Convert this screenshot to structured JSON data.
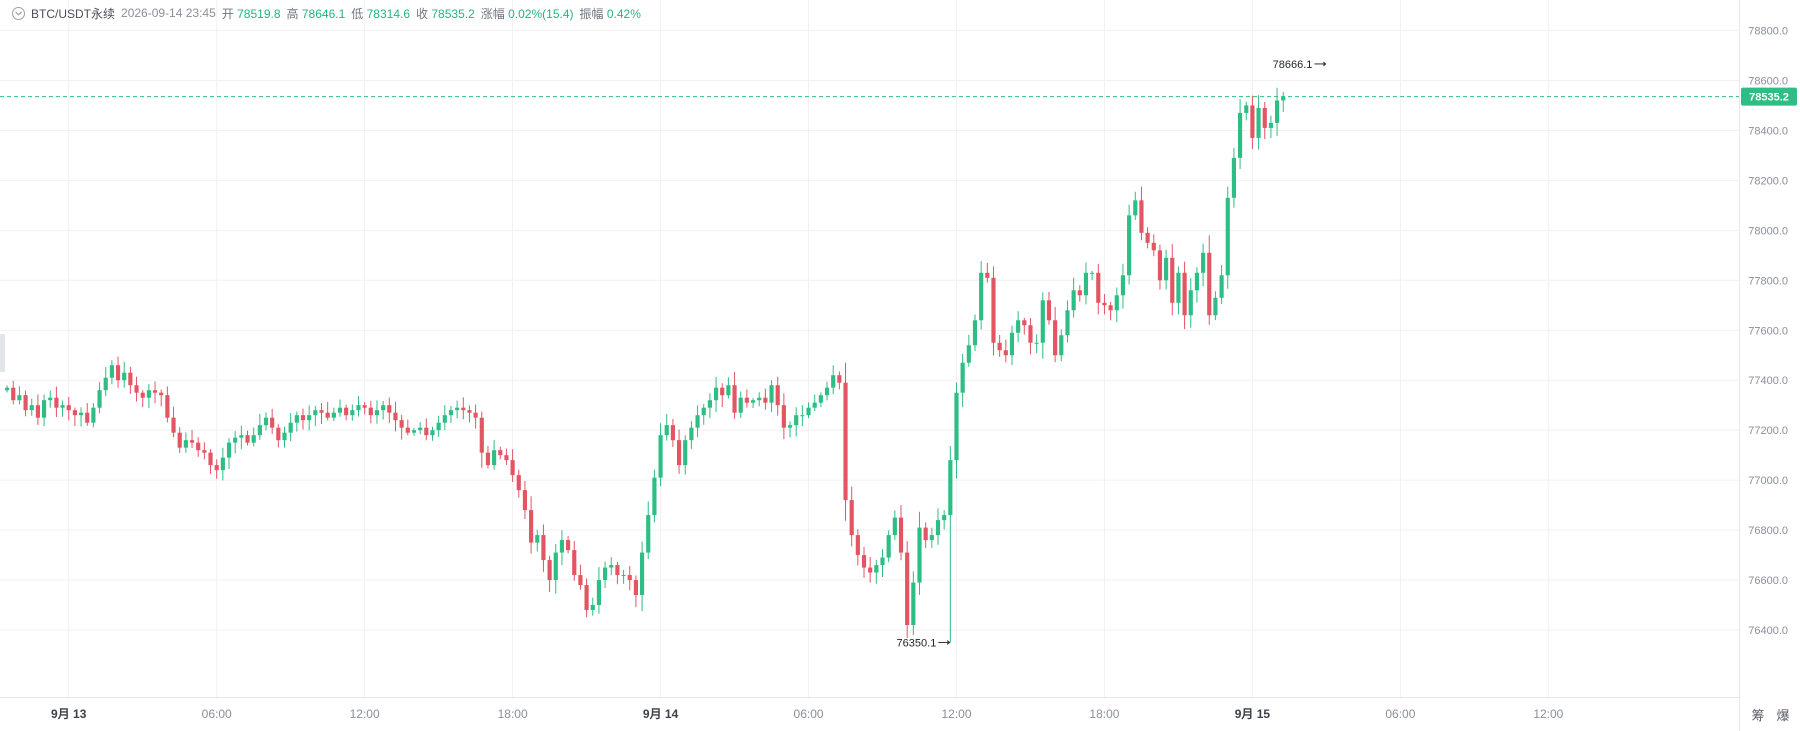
{
  "header": {
    "symbol": "BTC/USDT永续",
    "datetime": "2026-09-14 23:45",
    "open_label": "开",
    "open_value": "78519.8",
    "high_label": "高",
    "high_value": "78646.1",
    "low_label": "低",
    "low_value": "78314.6",
    "close_label": "收",
    "close_value": "78535.2",
    "change_label": "涨幅",
    "change_value": "0.02%(15.4)",
    "amplitude_label": "振幅",
    "amplitude_value": "0.42%"
  },
  "current_price_tag": "78535.2",
  "annotations": {
    "high_marker": "78666.1",
    "low_marker": "76350.1"
  },
  "corner_labels": [
    "筹",
    "爆"
  ],
  "colors": {
    "up": "#2ebd85",
    "down": "#e25563",
    "price_line": "#2ebd85",
    "grid": "#f0f1f3",
    "axis_text": "#8a8f99"
  },
  "chart_data": {
    "type": "candlestick",
    "interval_minutes": 15,
    "first_bar_time": "2026-09-12 21:30",
    "last_bar_time": "2026-09-14 23:45",
    "ylim": [
      76250,
      78850
    ],
    "y_ticks": [
      "78800.0",
      "78600.0",
      "78400.0",
      "78200.0",
      "78000.0",
      "77800.0",
      "77600.0",
      "77400.0",
      "77200.0",
      "77000.0",
      "76800.0",
      "76600.0",
      "76400.0"
    ],
    "x_ticks": [
      {
        "label": "9月 13",
        "bold": true
      },
      {
        "label": "06:00",
        "bold": false
      },
      {
        "label": "12:00",
        "bold": false
      },
      {
        "label": "18:00",
        "bold": false
      },
      {
        "label": "9月 14",
        "bold": true
      },
      {
        "label": "06:00",
        "bold": false
      },
      {
        "label": "12:00",
        "bold": false
      },
      {
        "label": "18:00",
        "bold": false
      },
      {
        "label": "9月 15",
        "bold": true
      },
      {
        "label": "06:00",
        "bold": false
      },
      {
        "label": "12:00",
        "bold": false
      }
    ],
    "closes": [
      77370,
      77320,
      77340,
      77280,
      77300,
      77250,
      77320,
      77330,
      77290,
      77300,
      77280,
      77260,
      77270,
      77230,
      77290,
      77360,
      77410,
      77460,
      77400,
      77430,
      77380,
      77350,
      77330,
      77360,
      77350,
      77340,
      77250,
      77190,
      77130,
      77160,
      77150,
      77120,
      77110,
      77060,
      77040,
      77090,
      77150,
      77170,
      77180,
      77150,
      77180,
      77220,
      77250,
      77210,
      77160,
      77190,
      77230,
      77260,
      77240,
      77260,
      77280,
      77270,
      77250,
      77270,
      77290,
      77260,
      77280,
      77300,
      77290,
      77260,
      77280,
      77300,
      77270,
      77240,
      77210,
      77190,
      77200,
      77210,
      77180,
      77200,
      77230,
      77260,
      77280,
      77290,
      77280,
      77270,
      77250,
      77110,
      77060,
      77120,
      77100,
      77080,
      77020,
      76960,
      76880,
      76750,
      76780,
      76680,
      76600,
      76710,
      76760,
      76720,
      76620,
      76580,
      76480,
      76500,
      76600,
      76650,
      76660,
      76620,
      76620,
      76600,
      76540,
      76710,
      76860,
      77010,
      77180,
      77220,
      77160,
      77060,
      77160,
      77210,
      77260,
      77290,
      77320,
      77370,
      77340,
      77380,
      77270,
      77330,
      77310,
      77320,
      77330,
      77310,
      77380,
      77300,
      77210,
      77220,
      77260,
      77260,
      77290,
      77310,
      77340,
      77370,
      77420,
      77390,
      76920,
      76780,
      76700,
      76650,
      76630,
      76660,
      76690,
      76780,
      76850,
      76710,
      76420,
      76590,
      76810,
      76760,
      76780,
      76840,
      76860,
      77080,
      77350,
      77470,
      77540,
      77640,
      77830,
      77810,
      77550,
      77520,
      77500,
      77590,
      77640,
      77620,
      77550,
      77550,
      77720,
      77640,
      77500,
      77580,
      77680,
      77760,
      77740,
      77830,
      77830,
      77710,
      77700,
      77680,
      77740,
      77820,
      78060,
      78120,
      77990,
      77950,
      77920,
      77800,
      77890,
      77710,
      77830,
      77660,
      77760,
      77830,
      77910,
      77660,
      77730,
      77820,
      78130,
      78290,
      78470,
      78500,
      78370,
      78490,
      78410,
      78430,
      78520,
      78535
    ]
  }
}
